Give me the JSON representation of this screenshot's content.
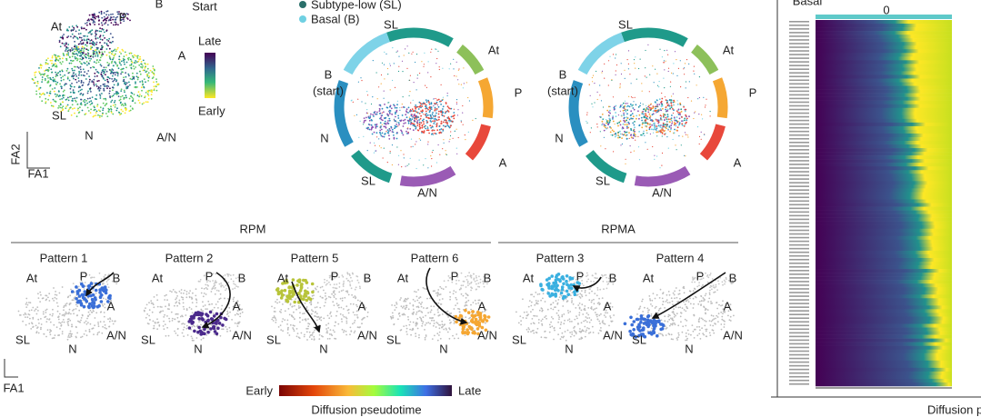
{
  "top_left": {
    "labels": [
      "At",
      "P",
      "B",
      "Start",
      "A",
      "SL",
      "N",
      "A/N"
    ],
    "fa2": "FA2",
    "fa1": "FA1",
    "colorbar": {
      "high": "Late",
      "low": "Early"
    }
  },
  "legend": [
    "Subtype-low (SL)",
    "Basal (B)"
  ],
  "circles": [
    {
      "labels": [
        "SL",
        "At",
        "P",
        "A",
        "A/N",
        "SL",
        "N",
        "B",
        "(start)"
      ]
    },
    {
      "labels": [
        "SL",
        "At",
        "P",
        "A",
        "A/N",
        "SL",
        "N",
        "B",
        "(start)"
      ]
    }
  ],
  "groups": [
    "RPM",
    "RPMA"
  ],
  "patterns": [
    {
      "title": "Pattern 1",
      "labels": [
        "At",
        "P",
        "B",
        "A",
        "A/N",
        "N",
        "SL"
      ]
    },
    {
      "title": "Pattern 2",
      "labels": [
        "At",
        "P",
        "B",
        "A",
        "A/N",
        "N",
        "SL"
      ]
    },
    {
      "title": "Pattern 5",
      "labels": [
        "At",
        "P",
        "B",
        "A",
        "A/N",
        "N",
        "SL"
      ]
    },
    {
      "title": "Pattern 6",
      "labels": [
        "At",
        "P",
        "B",
        "A",
        "A/N",
        "N",
        "SL"
      ]
    },
    {
      "title": "Pattern 3",
      "labels": [
        "At",
        "P",
        "B",
        "A",
        "A/N",
        "N",
        "SL"
      ]
    },
    {
      "title": "Pattern 4",
      "labels": [
        "At",
        "P",
        "B",
        "A",
        "A/N",
        "N",
        "SL"
      ]
    }
  ],
  "bottom_axis": "FA1",
  "colorbar": {
    "low": "Early",
    "high": "Late",
    "title": "Diffusion pseudotime"
  },
  "heatmap": {
    "header": "Basal",
    "tick": 0,
    "xlabel": "Diffusion p"
  }
}
